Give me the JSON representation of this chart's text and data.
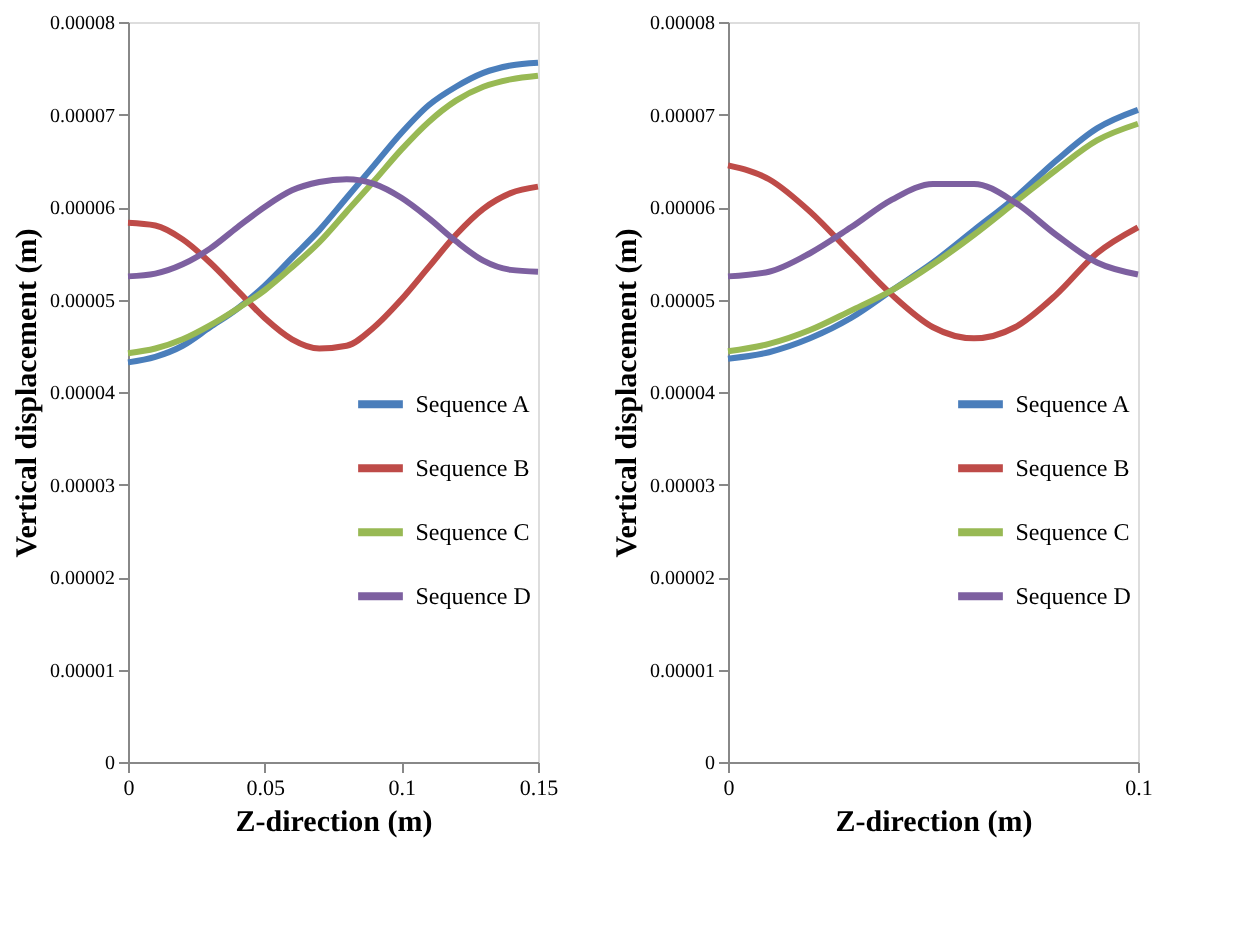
{
  "chart_data": [
    {
      "type": "line",
      "xlabel": "Z-direction (m)",
      "ylabel": "Vertical displacement (m)",
      "x": [
        0,
        0.01,
        0.02,
        0.03,
        0.04,
        0.05,
        0.06,
        0.07,
        0.08,
        0.09,
        0.1,
        0.11,
        0.12,
        0.13,
        0.14,
        0.15
      ],
      "xlim": [
        0,
        0.15
      ],
      "xticks": [
        {
          "value": 0,
          "label": "0"
        },
        {
          "value": 0.05,
          "label": "0.05"
        },
        {
          "value": 0.1,
          "label": "0.1"
        },
        {
          "value": 0.15,
          "label": "0.15"
        }
      ],
      "ylim": [
        0,
        8e-05
      ],
      "yticks": [
        {
          "value": 0,
          "label": "0"
        },
        {
          "value": 1e-05,
          "label": "0.00001"
        },
        {
          "value": 2e-05,
          "label": "0.00002"
        },
        {
          "value": 3e-05,
          "label": "0.00003"
        },
        {
          "value": 4e-05,
          "label": "0.00004"
        },
        {
          "value": 5e-05,
          "label": "0.00005"
        },
        {
          "value": 6e-05,
          "label": "0.00006"
        },
        {
          "value": 7e-05,
          "label": "0.00007"
        },
        {
          "value": 8e-05,
          "label": "0.00008"
        }
      ],
      "grid": false,
      "legend": "right",
      "marker": "none",
      "line_style": "solid",
      "series": [
        {
          "name": "Sequence A",
          "color": "#4a7ebb",
          "values": [
            4.32e-05,
            4.38e-05,
            4.5e-05,
            4.7e-05,
            4.9e-05,
            5.15e-05,
            5.45e-05,
            5.75e-05,
            6.1e-05,
            6.45e-05,
            6.8e-05,
            7.1e-05,
            7.3e-05,
            7.45e-05,
            7.53e-05,
            7.56e-05
          ]
        },
        {
          "name": "Sequence B",
          "color": "#be4b48",
          "values": [
            5.83e-05,
            5.8e-05,
            5.65e-05,
            5.4e-05,
            5.1e-05,
            4.8e-05,
            4.57e-05,
            4.47e-05,
            4.5e-05,
            4.7e-05,
            5e-05,
            5.35e-05,
            5.7e-05,
            5.98e-05,
            6.15e-05,
            6.22e-05
          ]
        },
        {
          "name": "Sequence C",
          "color": "#98b954",
          "values": [
            4.42e-05,
            4.47e-05,
            4.57e-05,
            4.72e-05,
            4.9e-05,
            5.1e-05,
            5.35e-05,
            5.62e-05,
            5.95e-05,
            6.28e-05,
            6.62e-05,
            6.92e-05,
            7.15e-05,
            7.3e-05,
            7.38e-05,
            7.42e-05
          ]
        },
        {
          "name": "Sequence D",
          "color": "#7d60a0",
          "values": [
            5.25e-05,
            5.28e-05,
            5.38e-05,
            5.55e-05,
            5.78e-05,
            6e-05,
            6.18e-05,
            6.27e-05,
            6.3e-05,
            6.25e-05,
            6.1e-05,
            5.88e-05,
            5.63e-05,
            5.42e-05,
            5.32e-05,
            5.3e-05
          ]
        }
      ]
    },
    {
      "type": "line",
      "xlabel": "Z-direction (m)",
      "ylabel": "Vertical displacement (m)",
      "x": [
        0,
        0.01,
        0.02,
        0.03,
        0.04,
        0.05,
        0.06,
        0.07,
        0.08,
        0.09,
        0.1
      ],
      "xlim": [
        0,
        0.1
      ],
      "xticks": [
        {
          "value": 0,
          "label": "0"
        },
        {
          "value": 0.1,
          "label": "0.1"
        }
      ],
      "ylim": [
        0,
        8e-05
      ],
      "yticks": [
        {
          "value": 0,
          "label": "0"
        },
        {
          "value": 1e-05,
          "label": "0.00001"
        },
        {
          "value": 2e-05,
          "label": "0.00002"
        },
        {
          "value": 3e-05,
          "label": "0.00003"
        },
        {
          "value": 4e-05,
          "label": "0.00004"
        },
        {
          "value": 5e-05,
          "label": "0.00005"
        },
        {
          "value": 6e-05,
          "label": "0.00006"
        },
        {
          "value": 7e-05,
          "label": "0.00007"
        },
        {
          "value": 8e-05,
          "label": "0.00008"
        }
      ],
      "grid": false,
      "legend": "right",
      "marker": "none",
      "line_style": "solid",
      "series": [
        {
          "name": "Sequence A",
          "color": "#4a7ebb",
          "values": [
            4.36e-05,
            4.43e-05,
            4.58e-05,
            4.8e-05,
            5.1e-05,
            5.4e-05,
            5.75e-05,
            6.1e-05,
            6.5e-05,
            6.85e-05,
            7.05e-05
          ]
        },
        {
          "name": "Sequence B",
          "color": "#be4b48",
          "values": [
            6.45e-05,
            6.3e-05,
            5.95e-05,
            5.5e-05,
            5.05e-05,
            4.7e-05,
            4.58e-05,
            4.7e-05,
            5.05e-05,
            5.5e-05,
            5.78e-05
          ]
        },
        {
          "name": "Sequence C",
          "color": "#98b954",
          "values": [
            4.44e-05,
            4.52e-05,
            4.67e-05,
            4.88e-05,
            5.1e-05,
            5.38e-05,
            5.7e-05,
            6.05e-05,
            6.4e-05,
            6.72e-05,
            6.9e-05
          ]
        },
        {
          "name": "Sequence D",
          "color": "#7d60a0",
          "values": [
            5.25e-05,
            5.3e-05,
            5.5e-05,
            5.78e-05,
            6.08e-05,
            6.25e-05,
            6.25e-05,
            6.05e-05,
            5.7e-05,
            5.4e-05,
            5.27e-05
          ]
        }
      ]
    }
  ]
}
